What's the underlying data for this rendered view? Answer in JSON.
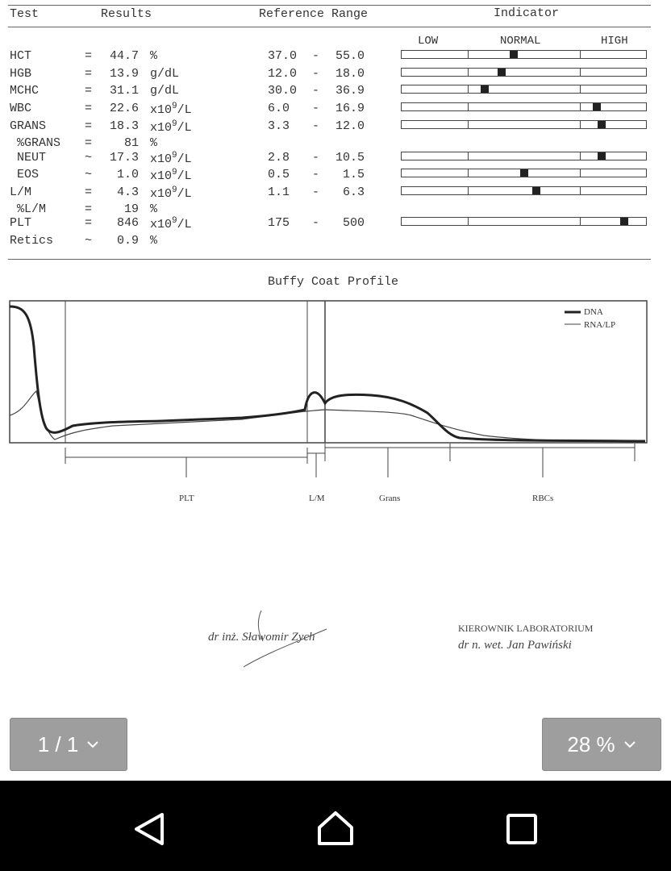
{
  "report": {
    "headers": {
      "test": "Test",
      "results": "Results",
      "reference": "Reference Range",
      "indicator": "Indicator"
    },
    "scale": {
      "low": "LOW",
      "normal": "NORMAL",
      "high": "HIGH"
    },
    "rows": [
      {
        "test": "HCT",
        "op": "=",
        "value": "44.7",
        "unit": "%",
        "ref_low": "37.0",
        "ref_high": "55.0",
        "indicator": 0.46
      },
      {
        "test": "HGB",
        "op": "=",
        "value": "13.9",
        "unit": "g/dL",
        "ref_low": "12.0",
        "ref_high": "18.0",
        "indicator": 0.41
      },
      {
        "test": "MCHC",
        "op": "=",
        "value": "31.1",
        "unit": "g/dL",
        "ref_low": "30.0",
        "ref_high": "36.9",
        "indicator": 0.34
      },
      {
        "test": "WBC",
        "op": "=",
        "value": "22.6",
        "unit": "x10",
        "sup": "9",
        "unit2": "/L",
        "ref_low": "6.0",
        "ref_high": "16.9",
        "indicator": 0.8
      },
      {
        "test": "GRANS",
        "op": "=",
        "value": "18.3",
        "unit": "x10",
        "sup": "9",
        "unit2": "/L",
        "ref_low": "3.3",
        "ref_high": "12.0",
        "indicator": 0.82
      },
      {
        "test": " %GRANS",
        "op": "=",
        "value": "  81",
        "unit": "%"
      },
      {
        "test": " NEUT",
        "op": "~",
        "value": "17.3",
        "unit": "x10",
        "sup": "9",
        "unit2": "/L",
        "ref_low": "2.8",
        "ref_high": "10.5",
        "indicator": 0.82
      },
      {
        "test": " EOS",
        "op": "~",
        "value": " 1.0",
        "unit": "x10",
        "sup": "9",
        "unit2": "/L",
        "ref_low": "0.5",
        "ref_high": " 1.5",
        "indicator": 0.5
      },
      {
        "test": "L/M",
        "op": "=",
        "value": " 4.3",
        "unit": "x10",
        "sup": "9",
        "unit2": "/L",
        "ref_low": "1.1",
        "ref_high": " 6.3",
        "indicator": 0.55
      },
      {
        "test": " %L/M",
        "op": "=",
        "value": "  19",
        "unit": "%"
      },
      {
        "test": "PLT",
        "op": "=",
        "value": " 846",
        "unit": "x10",
        "sup": "9",
        "unit2": "/L",
        "ref_low": "175",
        "ref_high": " 500",
        "indicator": 0.91
      },
      {
        "test": "Retics",
        "op": "~",
        "value": " 0.9",
        "unit": "%"
      }
    ]
  },
  "profile": {
    "title": "Buffy Coat Profile",
    "legend": [
      "DNA",
      "RNA/LP"
    ],
    "zones": [
      "PLT",
      "L/M",
      "Grans",
      "RBCs"
    ]
  },
  "signatures": {
    "left": "dr inż. Sławomir Zych",
    "right_title": "KIEROWNIK LABORATORIUM",
    "right_name": "dr n. wet. Jan Pawiński"
  },
  "viewer": {
    "page": "1 / 1",
    "zoom": "28 %"
  }
}
